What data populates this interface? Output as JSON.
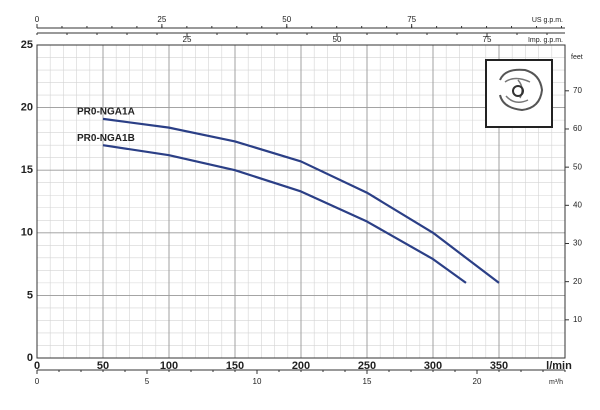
{
  "chart_data": {
    "type": "line",
    "x_label": "l/min",
    "y2_label": "feet",
    "xlim": [
      0,
      400
    ],
    "xticks": [
      0,
      50,
      100,
      150,
      200,
      250,
      300,
      350
    ],
    "ylim": [
      0,
      25
    ],
    "yticks": [
      0,
      5,
      10,
      15,
      20,
      25
    ],
    "y2lim": [
      0,
      82
    ],
    "y2ticks": [
      10,
      20,
      30,
      40,
      50,
      60,
      70
    ],
    "grid": true,
    "minor_grid": {
      "x": 10,
      "y": 1
    },
    "series": [
      {
        "name": "PR0-NGA1A",
        "color": "#2b3f86",
        "x": [
          50,
          100,
          150,
          200,
          250,
          300,
          350
        ],
        "values": [
          19.1,
          18.4,
          17.3,
          15.7,
          13.2,
          10.0,
          6.0
        ]
      },
      {
        "name": "PR0-NGA1B",
        "color": "#2b3f86",
        "x": [
          50,
          100,
          150,
          200,
          250,
          300,
          325
        ],
        "values": [
          17.0,
          16.2,
          15.0,
          13.3,
          10.9,
          7.9,
          6.0
        ]
      }
    ],
    "extra_axes": [
      {
        "label": "US g.p.m.",
        "position": "top",
        "lim": [
          0,
          105.7
        ],
        "ticks": [
          0,
          25,
          50,
          75
        ]
      },
      {
        "label": "Imp. g.p.m.",
        "position": "top-inner",
        "lim": [
          0,
          88
        ],
        "ticks": [
          25,
          50,
          75
        ]
      },
      {
        "label": "m³/h",
        "position": "bottom",
        "lim": [
          0,
          24
        ],
        "ticks": [
          0,
          5,
          10,
          15,
          20
        ]
      }
    ]
  }
}
